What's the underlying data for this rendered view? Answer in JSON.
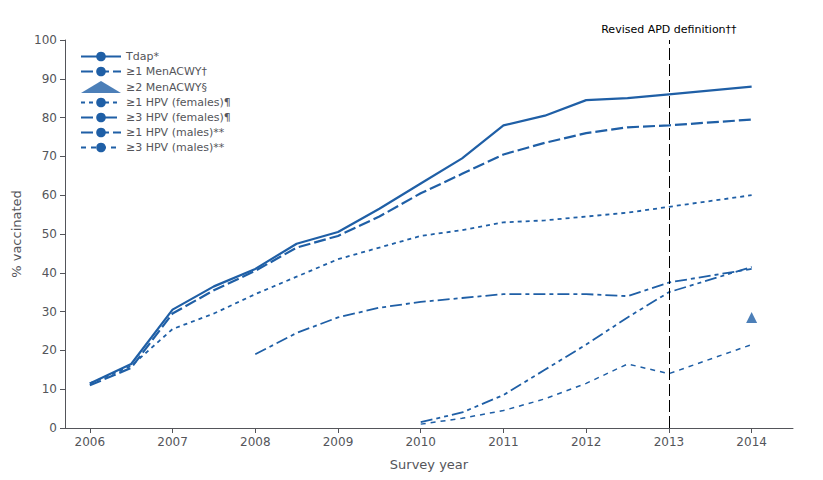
{
  "chart_data": {
    "type": "line",
    "xlabel": "Survey year",
    "ylabel": "% vaccinated",
    "xlim": [
      2005.7,
      2014.5
    ],
    "xticks": [
      2006,
      2007,
      2008,
      2009,
      2010,
      2011,
      2012,
      2013,
      2014
    ],
    "ylim": [
      0,
      100
    ],
    "yticks": [
      0,
      10,
      20,
      30,
      40,
      50,
      60,
      70,
      80,
      90,
      100
    ],
    "grid": false,
    "legend": "upper left",
    "color": "#1F5FA6",
    "series": [
      {
        "name": "Tdap*",
        "line_style": "solid",
        "x": [
          2006,
          2006.5,
          2007,
          2007.5,
          2008,
          2008.5,
          2009,
          2009.5,
          2010,
          2010.5,
          2011,
          2011.5,
          2012,
          2012.5,
          2013,
          2014
        ],
        "values": [
          11.5,
          16.5,
          30.5,
          36.5,
          41.0,
          47.5,
          50.5,
          56.5,
          63.0,
          69.5,
          78.0,
          80.5,
          84.5,
          85.0,
          86.0,
          88.0
        ]
      },
      {
        "name": "≥1 MenACWY†",
        "line_style": "dashed",
        "x": [
          2006,
          2006.5,
          2007,
          2007.5,
          2008,
          2008.5,
          2009,
          2009.5,
          2010,
          2010.5,
          2011,
          2011.5,
          2012,
          2012.5,
          2013,
          2014
        ],
        "values": [
          11.0,
          15.5,
          29.5,
          35.5,
          40.5,
          46.5,
          49.5,
          54.5,
          60.5,
          65.5,
          70.5,
          73.5,
          76.0,
          77.5,
          78.0,
          79.5
        ]
      },
      {
        "name": "≥2 MenACWY§",
        "type": "scatter",
        "marker": "triangle",
        "x": [
          2014
        ],
        "values": [
          28.5
        ]
      },
      {
        "name": "≥1 HPV (females)¶",
        "line_style": "dotted",
        "x": [
          2006,
          2006.5,
          2007,
          2007.5,
          2008,
          2008.5,
          2009,
          2009.5,
          2010,
          2010.5,
          2011,
          2011.5,
          2012,
          2012.5,
          2013,
          2014
        ],
        "values": [
          11.5,
          16.0,
          25.5,
          29.5,
          34.5,
          39.0,
          43.5,
          46.5,
          49.5,
          51.0,
          53.0,
          53.5,
          54.5,
          55.5,
          57.0,
          60.0
        ]
      },
      {
        "name": "≥3 HPV (females)¶",
        "line_style": "dashdot",
        "x": [
          2006,
          2006.5,
          2007,
          2007.5,
          2008,
          2008.5,
          2009,
          2009.5,
          2010,
          2010.5,
          2011,
          2011.5,
          2012,
          2012.5,
          2013,
          2014
        ],
        "values": [
          null,
          null,
          null,
          null,
          19.0,
          24.5,
          28.5,
          31.0,
          32.5,
          33.5,
          34.5,
          34.5,
          34.5,
          34.0,
          37.5,
          41.0
        ]
      },
      {
        "name": "≥1 HPV (males)**",
        "line_style": "dashdotdot",
        "x": [
          2010,
          2010.5,
          2011,
          2011.5,
          2012,
          2012.5,
          2013,
          2014
        ],
        "values": [
          1.5,
          4.0,
          8.5,
          15.0,
          21.5,
          28.5,
          35.0,
          41.5
        ]
      },
      {
        "name": "≥3 HPV (males)**",
        "line_style": "short_dash",
        "x": [
          2010,
          2010.5,
          2011,
          2011.5,
          2012,
          2012.5,
          2013,
          2014
        ],
        "values": [
          1.0,
          2.5,
          4.5,
          7.5,
          11.5,
          16.5,
          14.0,
          21.5
        ]
      }
    ],
    "annotations": [
      {
        "text": "Revised APD definition††",
        "x": 2013,
        "line_style": "dashed",
        "color": "#000000"
      }
    ]
  }
}
